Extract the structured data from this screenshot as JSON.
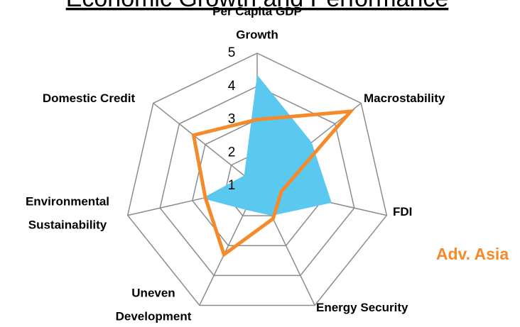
{
  "chart_data": {
    "type": "radar",
    "title": "Economic Growth and Performance",
    "categories": [
      "Per Capita GDP\nGrowth",
      "Macrostability",
      "FDI",
      "Energy Security",
      "Uneven\nDevelopment",
      "Environmental\nSustainability",
      "Domestic Credit"
    ],
    "rlim": [
      1,
      5
    ],
    "rticks": [
      1,
      2,
      3,
      4,
      5
    ],
    "grid": true,
    "series": [
      {
        "color": "#5bc8f0",
        "fill": true,
        "values": [
          4.35,
          3.1,
          3.3,
          2.0,
          1.8,
          2.7,
          1.5
        ]
      },
      {
        "name": "Adv. Asia",
        "color": "#f58a2a",
        "fill": false,
        "values": [
          3.0,
          4.6,
          1.75,
          2.1,
          3.3,
          2.6,
          3.45
        ]
      }
    ]
  }
}
